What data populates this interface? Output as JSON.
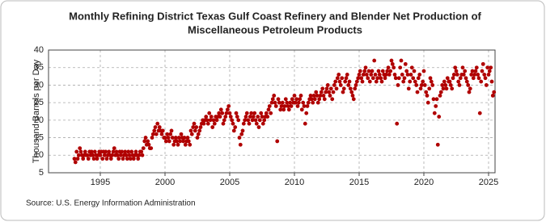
{
  "chart_data": {
    "type": "scatter",
    "title": [
      "Monthly Refining District Texas Gulf Coast Refinery and Blender Net Production of",
      "Miscellaneous Petroleum Products"
    ],
    "y_label": "Thousand Barrels per Day",
    "source": "Source: U.S. Energy Information Administration",
    "color": "#b00000",
    "grid": true,
    "xlim": [
      1991,
      2025.5
    ],
    "xticks": [
      1995,
      2000,
      2005,
      2010,
      2015,
      2020,
      2025
    ],
    "ylim": [
      5,
      40
    ],
    "yticks": [
      5,
      10,
      15,
      20,
      25,
      30,
      35,
      40
    ],
    "x": [
      1993,
      1993.08,
      1993.17,
      1993.25,
      1993.33,
      1993.42,
      1993.5,
      1993.58,
      1993.67,
      1993.75,
      1993.83,
      1993.92,
      1994,
      1994.08,
      1994.17,
      1994.25,
      1994.33,
      1994.42,
      1994.5,
      1994.58,
      1994.67,
      1994.75,
      1994.83,
      1994.92,
      1995,
      1995.08,
      1995.17,
      1995.25,
      1995.33,
      1995.42,
      1995.5,
      1995.58,
      1995.67,
      1995.75,
      1995.83,
      1995.92,
      1996,
      1996.08,
      1996.17,
      1996.25,
      1996.33,
      1996.42,
      1996.5,
      1996.58,
      1996.67,
      1996.75,
      1996.83,
      1996.92,
      1997,
      1997.08,
      1997.17,
      1997.25,
      1997.33,
      1997.42,
      1997.5,
      1997.58,
      1997.67,
      1997.75,
      1997.83,
      1997.92,
      1998,
      1998.08,
      1998.17,
      1998.25,
      1998.33,
      1998.42,
      1998.5,
      1998.58,
      1998.67,
      1998.75,
      1998.83,
      1998.92,
      1999,
      1999.08,
      1999.17,
      1999.25,
      1999.33,
      1999.42,
      1999.5,
      1999.58,
      1999.67,
      1999.75,
      1999.83,
      1999.92,
      2000,
      2000.08,
      2000.17,
      2000.25,
      2000.33,
      2000.42,
      2000.5,
      2000.58,
      2000.67,
      2000.75,
      2000.83,
      2000.92,
      2001,
      2001.08,
      2001.17,
      2001.25,
      2001.33,
      2001.42,
      2001.5,
      2001.58,
      2001.67,
      2001.75,
      2001.83,
      2001.92,
      2002,
      2002.08,
      2002.17,
      2002.25,
      2002.33,
      2002.42,
      2002.5,
      2002.58,
      2002.67,
      2002.75,
      2002.83,
      2002.92,
      2003,
      2003.08,
      2003.17,
      2003.25,
      2003.33,
      2003.42,
      2003.5,
      2003.58,
      2003.67,
      2003.75,
      2003.83,
      2003.92,
      2004,
      2004.08,
      2004.17,
      2004.25,
      2004.33,
      2004.42,
      2004.5,
      2004.58,
      2004.67,
      2004.75,
      2004.83,
      2004.92,
      2005,
      2005.08,
      2005.17,
      2005.25,
      2005.33,
      2005.42,
      2005.5,
      2005.58,
      2005.67,
      2005.75,
      2005.83,
      2005.92,
      2006,
      2006.08,
      2006.17,
      2006.25,
      2006.33,
      2006.42,
      2006.5,
      2006.58,
      2006.67,
      2006.75,
      2006.83,
      2006.92,
      2007,
      2007.08,
      2007.17,
      2007.25,
      2007.33,
      2007.42,
      2007.5,
      2007.58,
      2007.67,
      2007.75,
      2007.83,
      2007.92,
      2008,
      2008.08,
      2008.17,
      2008.25,
      2008.33,
      2008.42,
      2008.5,
      2008.58,
      2008.67,
      2008.75,
      2008.83,
      2008.92,
      2009,
      2009.08,
      2009.17,
      2009.25,
      2009.33,
      2009.42,
      2009.5,
      2009.58,
      2009.67,
      2009.75,
      2009.83,
      2009.92,
      2010,
      2010.08,
      2010.17,
      2010.25,
      2010.33,
      2010.42,
      2010.5,
      2010.58,
      2010.67,
      2010.75,
      2010.83,
      2010.92,
      2011,
      2011.08,
      2011.17,
      2011.25,
      2011.33,
      2011.42,
      2011.5,
      2011.58,
      2011.67,
      2011.75,
      2011.83,
      2011.92,
      2012,
      2012.08,
      2012.17,
      2012.25,
      2012.33,
      2012.42,
      2012.5,
      2012.58,
      2012.67,
      2012.75,
      2012.83,
      2012.92,
      2013,
      2013.08,
      2013.17,
      2013.25,
      2013.33,
      2013.42,
      2013.5,
      2013.58,
      2013.67,
      2013.75,
      2013.83,
      2013.92,
      2014,
      2014.08,
      2014.17,
      2014.25,
      2014.33,
      2014.42,
      2014.5,
      2014.58,
      2014.67,
      2014.75,
      2014.83,
      2014.92,
      2015,
      2015.08,
      2015.17,
      2015.25,
      2015.33,
      2015.42,
      2015.5,
      2015.58,
      2015.67,
      2015.75,
      2015.83,
      2015.92,
      2016,
      2016.08,
      2016.17,
      2016.25,
      2016.33,
      2016.42,
      2016.5,
      2016.58,
      2016.67,
      2016.75,
      2016.83,
      2016.92,
      2017,
      2017.08,
      2017.17,
      2017.25,
      2017.33,
      2017.42,
      2017.5,
      2017.58,
      2017.67,
      2017.75,
      2017.83,
      2017.92,
      2018,
      2018.08,
      2018.17,
      2018.25,
      2018.33,
      2018.42,
      2018.5,
      2018.58,
      2018.67,
      2018.75,
      2018.83,
      2018.92,
      2019,
      2019.08,
      2019.17,
      2019.25,
      2019.33,
      2019.42,
      2019.5,
      2019.58,
      2019.67,
      2019.75,
      2019.83,
      2019.92,
      2020,
      2020.08,
      2020.17,
      2020.25,
      2020.33,
      2020.42,
      2020.5,
      2020.58,
      2020.67,
      2020.75,
      2020.83,
      2020.92,
      2021,
      2021.08,
      2021.17,
      2021.25,
      2021.33,
      2021.42,
      2021.5,
      2021.58,
      2021.67,
      2021.75,
      2021.83,
      2021.92,
      2022,
      2022.08,
      2022.17,
      2022.25,
      2022.33,
      2022.42,
      2022.5,
      2022.58,
      2022.67,
      2022.75,
      2022.83,
      2022.92,
      2023,
      2023.08,
      2023.17,
      2023.25,
      2023.33,
      2023.42,
      2023.5,
      2023.58,
      2023.67,
      2023.75,
      2023.83,
      2023.92,
      2024,
      2024.08,
      2024.17,
      2024.25,
      2024.33,
      2024.42,
      2024.5,
      2024.58,
      2024.67,
      2024.75,
      2024.83,
      2024.92,
      2025,
      2025.08,
      2025.17,
      2025.25,
      2025.33,
      2025.42
    ],
    "values": [
      9,
      8,
      11,
      9,
      10,
      12,
      11,
      10,
      9,
      10,
      11,
      10,
      10,
      9,
      11,
      10,
      11,
      10,
      9,
      11,
      10,
      9,
      10,
      11,
      10,
      11,
      9,
      11,
      10,
      11,
      9,
      10,
      11,
      10,
      9,
      10,
      11,
      12,
      10,
      11,
      10,
      9,
      11,
      10,
      11,
      9,
      10,
      11,
      10,
      9,
      11,
      10,
      9,
      11,
      10,
      9,
      10,
      11,
      10,
      9,
      10,
      11,
      11,
      10,
      12,
      14,
      15,
      13,
      14,
      13,
      12,
      12,
      15,
      16,
      17,
      18,
      16,
      19,
      17,
      18,
      17,
      16,
      17,
      15,
      15,
      14,
      16,
      15,
      14,
      16,
      17,
      15,
      13,
      14,
      15,
      14,
      13,
      15,
      14,
      16,
      15,
      14,
      15,
      13,
      14,
      15,
      14,
      13,
      17,
      16,
      18,
      19,
      17,
      18,
      15,
      16,
      17,
      18,
      19,
      20,
      19,
      20,
      21,
      20,
      19,
      22,
      20,
      21,
      18,
      20,
      19,
      21,
      20,
      21,
      22,
      21,
      23,
      22,
      19,
      20,
      21,
      22,
      23,
      24,
      22,
      21,
      20,
      19,
      17,
      18,
      22,
      21,
      20,
      15,
      13,
      16,
      17,
      19,
      20,
      21,
      22,
      20,
      19,
      21,
      22,
      20,
      21,
      22,
      20,
      19,
      21,
      18,
      20,
      22,
      21,
      19,
      20,
      21,
      22,
      21,
      23,
      24,
      22,
      25,
      26,
      27,
      25,
      24,
      14,
      26,
      25,
      23,
      24,
      25,
      23,
      24,
      26,
      25,
      24,
      23,
      25,
      24,
      26,
      25,
      27,
      25,
      26,
      24,
      25,
      26,
      27,
      23,
      25,
      24,
      19,
      22,
      24,
      25,
      26,
      27,
      26,
      25,
      27,
      26,
      28,
      27,
      25,
      26,
      27,
      28,
      29,
      27,
      26,
      28,
      29,
      30,
      28,
      27,
      29,
      26,
      28,
      30,
      31,
      29,
      32,
      33,
      31,
      30,
      32,
      28,
      29,
      31,
      32,
      33,
      30,
      31,
      29,
      28,
      27,
      26,
      29,
      30,
      31,
      32,
      33,
      34,
      32,
      31,
      33,
      34,
      35,
      33,
      32,
      34,
      31,
      33,
      34,
      32,
      37,
      33,
      31,
      32,
      34,
      33,
      32,
      31,
      34,
      33,
      32,
      33,
      34,
      35,
      33,
      34,
      37,
      36,
      35,
      33,
      32,
      19,
      30,
      32,
      35,
      37,
      33,
      31,
      32,
      36,
      34,
      33,
      29,
      31,
      33,
      35,
      32,
      34,
      31,
      30,
      28,
      32,
      33,
      29,
      30,
      31,
      34,
      30,
      28,
      27,
      25,
      29,
      32,
      31,
      30,
      26,
      22,
      24,
      26,
      13,
      21,
      27,
      28,
      30,
      29,
      31,
      30,
      29,
      32,
      31,
      31,
      30,
      29,
      32,
      33,
      35,
      34,
      33,
      31,
      30,
      32,
      33,
      35,
      33,
      34,
      32,
      31,
      30,
      28,
      29,
      33,
      34,
      32,
      33,
      34,
      35,
      33,
      32,
      22,
      31,
      34,
      36,
      33,
      32,
      30,
      35,
      33,
      34,
      35,
      31,
      27,
      28
    ]
  }
}
